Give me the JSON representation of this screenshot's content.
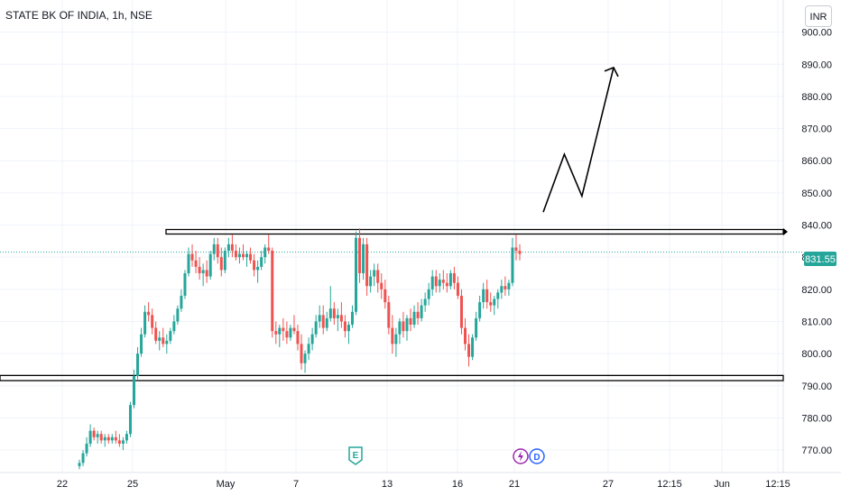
{
  "header": {
    "title": "STATE BK OF INDIA, 1h, NSE",
    "currency": "INR"
  },
  "colors": {
    "up": "#26a69a",
    "down": "#ef5350",
    "grid": "#f0f3fa",
    "text": "#131722",
    "price_line": "#26a69a",
    "earnings": "#26a69a",
    "split": "#9c27b0",
    "dividend": "#2962ff"
  },
  "icons": {
    "earnings": "E",
    "split": "split-icon",
    "dividend": "D"
  },
  "chart_data": {
    "type": "candlestick",
    "title": "STATE BK OF INDIA, 1h, NSE",
    "y_axis": {
      "min": 763,
      "max": 910,
      "ticks": [
        "770.00",
        "780.00",
        "790.00",
        "800.00",
        "810.00",
        "820.00",
        "830.00",
        "840.00",
        "850.00",
        "860.00",
        "870.00",
        "880.00",
        "890.00",
        "900.00"
      ]
    },
    "x_axis": {
      "ticks": [
        "22",
        "25",
        "May",
        "7",
        "13",
        "16",
        "21",
        "27",
        "12:15",
        "Jun",
        "12:15"
      ]
    },
    "last_price": "831.55",
    "resistance_zone": [
      837.2,
      838.6
    ],
    "support_zone": [
      791.6,
      793.2
    ],
    "projection_path": [
      [
        0,
        844
      ],
      [
        0.3,
        862
      ],
      [
        0.55,
        849
      ],
      [
        1,
        889
      ]
    ],
    "events": [
      {
        "type": "earnings",
        "label": "E",
        "near_tick": "7"
      },
      {
        "type": "split",
        "label": "",
        "near_tick": "21"
      },
      {
        "type": "dividend",
        "label": "D",
        "near_tick": "21"
      }
    ],
    "candles": [
      [
        765,
        767,
        764,
        766
      ],
      [
        766,
        770,
        765,
        769
      ],
      [
        769,
        774,
        768,
        772
      ],
      [
        772,
        778,
        771,
        776
      ],
      [
        776,
        777,
        773,
        774
      ],
      [
        774,
        776,
        772,
        775
      ],
      [
        775,
        776,
        772,
        773
      ],
      [
        773,
        775,
        771,
        774
      ],
      [
        774,
        775,
        772,
        773
      ],
      [
        773,
        775,
        772,
        774
      ],
      [
        774,
        776,
        772,
        773
      ],
      [
        773,
        775,
        771,
        772
      ],
      [
        772,
        774,
        770,
        773
      ],
      [
        773,
        776,
        772,
        775
      ],
      [
        775,
        785,
        774,
        784
      ],
      [
        784,
        795,
        783,
        793
      ],
      [
        793,
        802,
        792,
        800
      ],
      [
        800,
        808,
        799,
        806
      ],
      [
        806,
        815,
        805,
        813
      ],
      [
        813,
        816,
        810,
        812
      ],
      [
        812,
        814,
        806,
        808
      ],
      [
        808,
        810,
        803,
        804
      ],
      [
        804,
        807,
        801,
        805
      ],
      [
        805,
        808,
        802,
        803
      ],
      [
        803,
        806,
        800,
        804
      ],
      [
        804,
        808,
        803,
        807
      ],
      [
        807,
        812,
        806,
        810
      ],
      [
        810,
        815,
        809,
        814
      ],
      [
        814,
        820,
        813,
        818
      ],
      [
        818,
        826,
        817,
        825
      ],
      [
        825,
        833,
        824,
        831
      ],
      [
        831,
        834,
        827,
        829
      ],
      [
        829,
        832,
        825,
        827
      ],
      [
        827,
        830,
        823,
        825
      ],
      [
        825,
        828,
        821,
        826
      ],
      [
        826,
        829,
        822,
        824
      ],
      [
        824,
        832,
        823,
        831
      ],
      [
        831,
        836,
        829,
        834
      ],
      [
        834,
        836,
        828,
        830
      ],
      [
        830,
        833,
        824,
        826
      ],
      [
        826,
        833,
        825,
        832
      ],
      [
        832,
        836,
        830,
        834
      ],
      [
        834,
        837,
        830,
        832
      ],
      [
        832,
        834,
        829,
        830
      ],
      [
        830,
        833,
        828,
        831
      ],
      [
        831,
        834,
        829,
        830
      ],
      [
        830,
        832,
        827,
        831
      ],
      [
        831,
        833,
        828,
        829
      ],
      [
        829,
        831,
        824,
        826
      ],
      [
        826,
        829,
        822,
        827
      ],
      [
        827,
        832,
        826,
        830
      ],
      [
        830,
        834,
        828,
        833
      ],
      [
        833,
        837,
        831,
        832
      ],
      [
        832,
        833,
        805,
        807
      ],
      [
        807,
        810,
        803,
        806
      ],
      [
        806,
        809,
        802,
        808
      ],
      [
        808,
        811,
        804,
        807
      ],
      [
        807,
        810,
        803,
        805
      ],
      [
        805,
        809,
        804,
        808
      ],
      [
        808,
        812,
        806,
        807
      ],
      [
        807,
        809,
        801,
        803
      ],
      [
        803,
        806,
        795,
        797
      ],
      [
        797,
        801,
        794,
        800
      ],
      [
        800,
        805,
        798,
        803
      ],
      [
        803,
        808,
        801,
        806
      ],
      [
        806,
        812,
        805,
        810
      ],
      [
        810,
        815,
        808,
        812
      ],
      [
        812,
        815,
        806,
        808
      ],
      [
        808,
        813,
        807,
        811
      ],
      [
        811,
        821,
        810,
        814
      ],
      [
        814,
        816,
        809,
        811
      ],
      [
        811,
        814,
        807,
        812
      ],
      [
        812,
        816,
        808,
        810
      ],
      [
        810,
        812,
        805,
        807
      ],
      [
        807,
        810,
        803,
        809
      ],
      [
        809,
        815,
        808,
        813
      ],
      [
        813,
        838,
        812,
        836
      ],
      [
        836,
        839,
        822,
        825
      ],
      [
        825,
        836,
        823,
        834
      ],
      [
        834,
        836,
        818,
        821
      ],
      [
        821,
        826,
        819,
        824
      ],
      [
        824,
        828,
        821,
        826
      ],
      [
        826,
        828,
        819,
        822
      ],
      [
        822,
        825,
        817,
        820
      ],
      [
        820,
        823,
        814,
        816
      ],
      [
        816,
        818,
        806,
        808
      ],
      [
        808,
        812,
        800,
        803
      ],
      [
        803,
        808,
        799,
        806
      ],
      [
        806,
        811,
        803,
        810
      ],
      [
        810,
        813,
        805,
        807
      ],
      [
        807,
        812,
        804,
        811
      ],
      [
        811,
        814,
        807,
        809
      ],
      [
        809,
        815,
        808,
        813
      ],
      [
        813,
        816,
        809,
        811
      ],
      [
        811,
        817,
        810,
        815
      ],
      [
        815,
        819,
        813,
        817
      ],
      [
        817,
        822,
        815,
        820
      ],
      [
        820,
        826,
        818,
        824
      ],
      [
        824,
        826,
        819,
        821
      ],
      [
        821,
        825,
        819,
        823
      ],
      [
        823,
        826,
        820,
        822
      ],
      [
        822,
        825,
        819,
        821
      ],
      [
        821,
        826,
        820,
        825
      ],
      [
        825,
        827,
        820,
        822
      ],
      [
        822,
        824,
        817,
        818
      ],
      [
        818,
        820,
        806,
        808
      ],
      [
        808,
        811,
        801,
        803
      ],
      [
        803,
        806,
        796,
        799
      ],
      [
        799,
        806,
        798,
        805
      ],
      [
        805,
        813,
        804,
        811
      ],
      [
        811,
        818,
        810,
        816
      ],
      [
        816,
        822,
        814,
        820
      ],
      [
        820,
        823,
        814,
        816
      ],
      [
        816,
        819,
        813,
        815
      ],
      [
        815,
        818,
        812,
        817
      ],
      [
        817,
        820,
        814,
        819
      ],
      [
        819,
        823,
        817,
        821
      ],
      [
        821,
        824,
        818,
        820
      ],
      [
        820,
        823,
        818,
        822
      ],
      [
        822,
        836,
        821,
        833
      ],
      [
        833,
        837,
        829,
        832
      ],
      [
        832,
        834,
        829,
        831
      ]
    ]
  }
}
